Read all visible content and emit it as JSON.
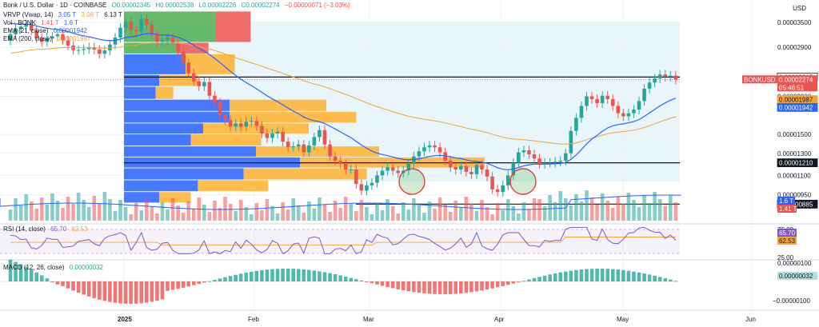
{
  "header": {
    "title": "Bonk / U.S. Dollar · 1D · COINBASE",
    "open": "O0.00002345",
    "high": "H0.00002538",
    "low": "L0.00002226",
    "close": "C0.00002274",
    "change": "−0.00000071 (−3.03%)",
    "vrvp_label": "VRVP (Vwap, 14)",
    "vrvp_v1": "3.05 T",
    "vrvp_v2": "3.08 T",
    "vrvp_v3": "6.13 T",
    "vol_label": "Vol · BONK",
    "vol_v1": "1.41 T",
    "vol_v2": "1.6 T",
    "ema21_label": "EMA (21, close)",
    "ema21_val": "0.00001942",
    "ema200_label": "EMA (200, close)",
    "ema200_val": "0.00001987",
    "rsi_label": "RSI (14, close)",
    "rsi_val": "65.70",
    "rsi_ma": "62.53",
    "macd_label": "MACD (12, 26, close)",
    "macd_val": "0.00000032",
    "currency": "USD"
  },
  "colors": {
    "up": "#26a69a",
    "down": "#ef5350",
    "ema21": "#2962ff",
    "ema200": "#f2a33a",
    "rsi": "#7e57c2",
    "bg_zone": "#e8f6fb",
    "vrvp_blue": "#2962ff",
    "vrvp_orange": "#ffb22e"
  },
  "chart_data": {
    "type": "candlestick",
    "ylim": [
      8.5e-06,
      3.95e-05
    ],
    "yscale": "log",
    "price_ticks": [
      "0.00003500",
      "0.00002900",
      "0.00002000",
      "0.00001500",
      "0.00001300",
      "0.00001100",
      "0.00000950",
      "0.00000700"
    ],
    "x_ticks": [
      "2025",
      "Feb",
      "Mar",
      "Apr",
      "May",
      "Jun"
    ],
    "price_labels": [
      {
        "value": 2.315e-05,
        "text": "0.00002315",
        "style": "outline"
      },
      {
        "value": 2.274e-05,
        "text": "BONKUSD",
        "text2": "0.00002274",
        "text3": "05:46:51",
        "style": "red"
      },
      {
        "value": 1.987e-05,
        "text": "0.00001987",
        "style": "orange"
      },
      {
        "value": 1.942e-05,
        "text": "0.00001942",
        "style": "blue"
      },
      {
        "value": 1.21e-05,
        "text": "0.00001210",
        "style": "black"
      },
      {
        "value": 8.85e-06,
        "text": "0.00000885",
        "style": "black"
      }
    ],
    "volume_labels": [
      "1.6 T",
      "1.41 T"
    ],
    "rsi_ticks": [
      "75.00",
      "25.00"
    ],
    "rsi_labels": [
      "65.70",
      "62.53"
    ],
    "macd_ticks": [
      "0.00000100",
      "−0.00000100"
    ],
    "macd_label": "0.00000032",
    "horizontal_lines": [
      2.315e-05,
      1.21e-05,
      8.85e-06
    ],
    "circles": [
      "2025-03-10",
      "2025-04-07"
    ],
    "closes": [
      3.2e-05,
      3.34e-05,
      3.39e-05,
      3.45e-05,
      3.29e-05,
      3.11e-05,
      3.02e-05,
      3.1e-05,
      3.15e-05,
      3.2e-05,
      3.06e-05,
      2.94e-05,
      2.84e-05,
      2.84e-05,
      2.86e-05,
      2.9e-05,
      2.85e-05,
      2.76e-05,
      2.83e-05,
      2.96e-05,
      3.12e-05,
      3.36e-05,
      3.52e-05,
      3.3e-05,
      3.27e-05,
      3.6e-05,
      3.44e-05,
      3.2e-05,
      3.02e-05,
      3.06e-05,
      3.12e-05,
      3e-05,
      2.81e-05,
      2.58e-05,
      2.38e-05,
      2.24e-05,
      2.16e-05,
      2.23e-05,
      2.01e-05,
      1.91e-05,
      1.74e-05,
      1.67e-05,
      1.59e-05,
      1.63e-05,
      1.59e-05,
      1.65e-05,
      1.66e-05,
      1.6e-05,
      1.51e-05,
      1.46e-05,
      1.51e-05,
      1.53e-05,
      1.42e-05,
      1.36e-05,
      1.37e-05,
      1.39e-05,
      1.31e-05,
      1.38e-05,
      1.47e-05,
      1.55e-05,
      1.39e-05,
      1.27e-05,
      1.23e-05,
      1.2e-05,
      1.15e-05,
      1.15e-05,
      1.03e-05,
      9.8e-06,
      1.02e-05,
      1.04e-05,
      1.1e-05,
      1.14e-05,
      1.17e-05,
      1.14e-05,
      1.12e-05,
      1.14e-05,
      1.2e-05,
      1.27e-05,
      1.32e-05,
      1.36e-05,
      1.38e-05,
      1.36e-05,
      1.31e-05,
      1.23e-05,
      1.17e-05,
      1.15e-05,
      1.18e-05,
      1.13e-05,
      1.11e-05,
      1.19e-05,
      1.15e-05,
      1.09e-05,
      9.9e-06,
      9.7e-06,
      1.02e-05,
      1.1e-05,
      1.21e-05,
      1.31e-05,
      1.33e-05,
      1.29e-05,
      1.25e-05,
      1.2e-05,
      1.21e-05,
      1.21e-05,
      1.22e-05,
      1.23e-05,
      1.3e-05,
      1.54e-05,
      1.7e-05,
      1.86e-05,
      2e-05,
      1.96e-05,
      1.9e-05,
      2.01e-05,
      1.96e-05,
      1.86e-05,
      1.76e-05,
      1.72e-05,
      1.76e-05,
      1.81e-05,
      1.93e-05,
      2.12e-05,
      2.22e-05,
      2.29e-05,
      2.36e-05,
      2.32e-05,
      2.34e-05,
      2.27e-05
    ],
    "volume_profile": [
      {
        "lo": 3e-05,
        "hi": 3.8e-05,
        "buy": 52,
        "sell": 20
      },
      {
        "lo": 2.75e-05,
        "hi": 3e-05,
        "buy": 30,
        "sell": 18
      },
      {
        "lo": 2.35e-05,
        "hi": 2.75e-05,
        "buy": 35,
        "sell": 28
      },
      {
        "lo": 2.15e-05,
        "hi": 2.35e-05,
        "buy": 20,
        "sell": 22
      },
      {
        "lo": 1.95e-05,
        "hi": 2.15e-05,
        "buy": 18,
        "sell": 10
      },
      {
        "lo": 1.78e-05,
        "hi": 1.95e-05,
        "buy": 60,
        "sell": 55
      },
      {
        "lo": 1.63e-05,
        "hi": 1.78e-05,
        "buy": 60,
        "sell": 72
      },
      {
        "lo": 1.5e-05,
        "hi": 1.63e-05,
        "buy": 45,
        "sell": 60
      },
      {
        "lo": 1.37e-05,
        "hi": 1.5e-05,
        "buy": 38,
        "sell": 40
      },
      {
        "lo": 1.26e-05,
        "hi": 1.37e-05,
        "buy": 75,
        "sell": 70
      },
      {
        "lo": 1.16e-05,
        "hi": 1.26e-05,
        "buy": 100,
        "sell": 105
      },
      {
        "lo": 1.06e-05,
        "hi": 1.16e-05,
        "buy": 68,
        "sell": 70
      },
      {
        "lo": 9.7e-06,
        "hi": 1.06e-05,
        "buy": 42,
        "sell": 40
      },
      {
        "lo": 8.9e-06,
        "hi": 9.7e-06,
        "buy": 20,
        "sell": 18
      }
    ]
  }
}
